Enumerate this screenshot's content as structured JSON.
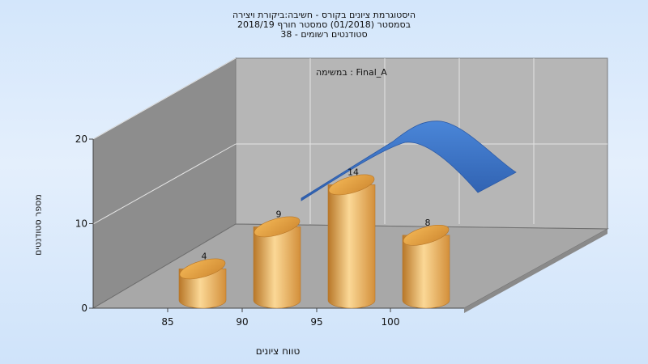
{
  "header": {
    "title_line1": "היסטוגרמת ציונים בקורס - חשיבה:ביקורת ויצירה",
    "title_line2": "בסמסטר  (01/2018)  סמסטר חורף 2018/19",
    "title_line3": "סטודנטים רשומים - 38"
  },
  "chart_data": {
    "type": "bar",
    "categories": [
      "85",
      "90",
      "95",
      "100"
    ],
    "values": [
      4,
      9,
      14,
      8
    ],
    "data_labels": [
      "4",
      "9",
      "14",
      "8"
    ],
    "trend_peak": 20,
    "y_ticks": [
      "0",
      "10",
      "20"
    ],
    "ylim": [
      0,
      20
    ],
    "xlabel": "טווח ציונים",
    "ylabel": "מספר סטודנטים",
    "annotation": "במשימה : Final_A",
    "colors": {
      "bar_light": "#fbd896",
      "bar_mid": "#e8a850",
      "bar_dark": "#b87728",
      "curve": "#3a72c4",
      "back_wall": "#b6b6b6",
      "side_wall": "#8d8d8d",
      "floor": "#a9a9a9"
    },
    "grid": true
  }
}
